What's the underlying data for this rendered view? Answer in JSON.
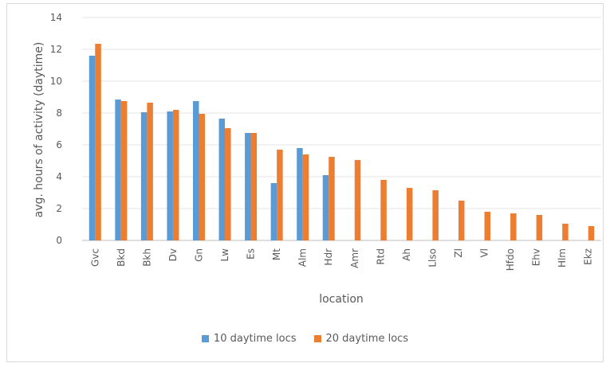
{
  "chart_data": {
    "type": "bar",
    "title": "",
    "xlabel": "location",
    "ylabel": "avg. hours of activity (daytime)",
    "ylim": [
      0,
      14
    ],
    "yticks": [
      0,
      2,
      4,
      6,
      8,
      10,
      12,
      14
    ],
    "grid": true,
    "legend_position": "bottom",
    "categories": [
      "Gvc",
      "Bkd",
      "Bkh",
      "Dv",
      "Gn",
      "Lw",
      "Es",
      "Mt",
      "Alm",
      "Hdr",
      "Amr",
      "Rtd",
      "Ah",
      "Llso",
      "Zl",
      "Vl",
      "Hfdo",
      "Ehv",
      "Hlm",
      "Ekz"
    ],
    "series": [
      {
        "name": "10 daytime locs",
        "color": "#5b9bd5",
        "values": [
          11.6,
          8.85,
          8.05,
          8.1,
          8.75,
          7.65,
          6.75,
          3.6,
          5.8,
          4.1,
          null,
          null,
          null,
          null,
          null,
          null,
          null,
          null,
          null,
          null
        ]
      },
      {
        "name": "20 daytime locs",
        "color": "#ed7d31",
        "values": [
          12.35,
          8.75,
          8.65,
          8.2,
          7.95,
          7.05,
          6.75,
          5.7,
          5.4,
          5.25,
          5.05,
          3.8,
          3.3,
          3.15,
          2.5,
          1.8,
          1.7,
          1.6,
          1.05,
          0.9
        ]
      }
    ]
  }
}
